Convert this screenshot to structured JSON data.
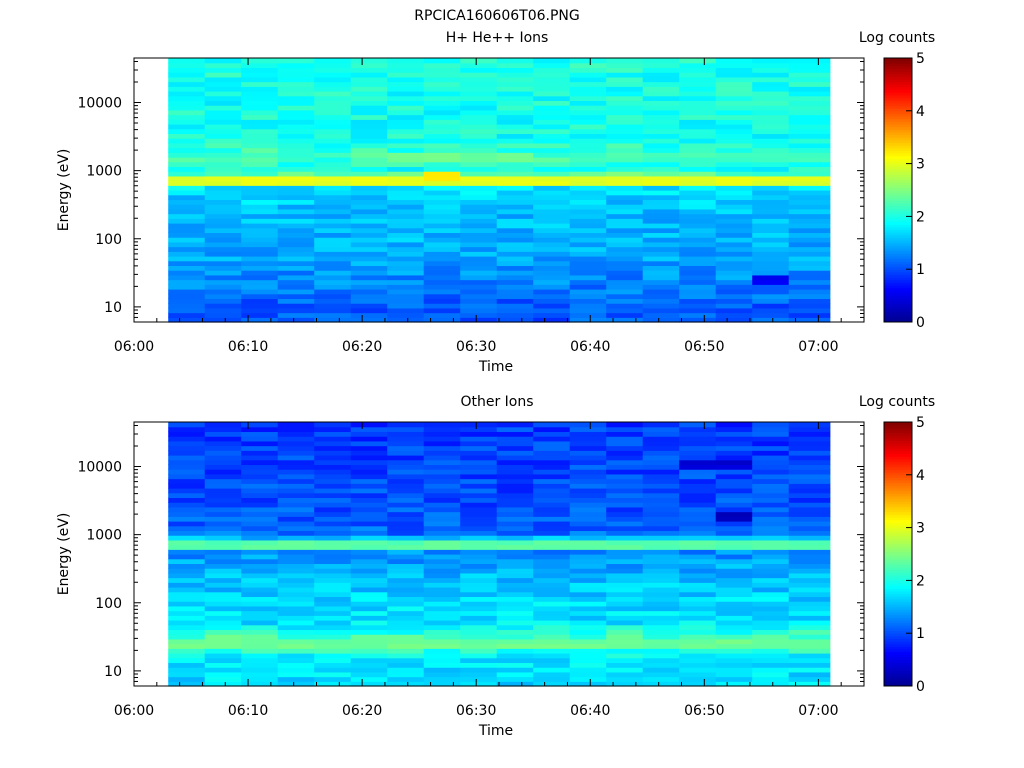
{
  "figure_title": "RPCICA160606T06.PNG",
  "colors": {
    "colormap": [
      "#00008f",
      "#0000ff",
      "#0080ff",
      "#00ffff",
      "#80ff80",
      "#ffff00",
      "#ff8000",
      "#ff0000",
      "#800000"
    ],
    "background": "#ffffff",
    "axis": "#000000"
  },
  "chart_data": [
    {
      "type": "heatmap",
      "title": "H+ He++ Ions",
      "xlabel": "Time",
      "ylabel": "Energy (eV)",
      "x_ticks": [
        "06:00",
        "06:10",
        "06:20",
        "06:30",
        "06:40",
        "06:50",
        "07:00"
      ],
      "xlim_minutes": [
        0,
        64
      ],
      "data_x_range_minutes": [
        3,
        61
      ],
      "y_scale": "log",
      "ylim": [
        6,
        45000
      ],
      "y_ticks": [
        "10",
        "100",
        "1000",
        "10000"
      ],
      "colorbar": {
        "label": "Log counts",
        "range": [
          0,
          5
        ],
        "ticks": [
          "0",
          "1",
          "2",
          "3",
          "4",
          "5"
        ]
      },
      "time_blocks_minutes": [
        3,
        6.2,
        9.4,
        12.6,
        15.8,
        19,
        22.2,
        25.4,
        28.6,
        31.8,
        35,
        38.2,
        41.4,
        44.6,
        47.8,
        51,
        54.2,
        57.4,
        61
      ],
      "energy_profile": [
        {
          "energy_ev": 8,
          "log_counts": 1.05
        },
        {
          "energy_ev": 12,
          "log_counts": 1.1
        },
        {
          "energy_ev": 20,
          "log_counts": 1.25
        },
        {
          "energy_ev": 35,
          "log_counts": 1.35
        },
        {
          "energy_ev": 60,
          "log_counts": 1.45
        },
        {
          "energy_ev": 100,
          "log_counts": 1.5
        },
        {
          "energy_ev": 200,
          "log_counts": 1.55
        },
        {
          "energy_ev": 400,
          "log_counts": 1.65
        },
        {
          "energy_ev": 600,
          "log_counts": 1.75
        },
        {
          "energy_ev": 770,
          "log_counts": 2.95
        },
        {
          "energy_ev": 1000,
          "log_counts": 1.9
        },
        {
          "energy_ev": 1600,
          "log_counts": 2.2
        },
        {
          "energy_ev": 3000,
          "log_counts": 1.95
        },
        {
          "energy_ev": 10000,
          "log_counts": 1.95
        },
        {
          "energy_ev": 40000,
          "log_counts": 2.0
        }
      ],
      "notable_features": [
        {
          "energy_ev": 770,
          "time_range_minutes": [
            3,
            61
          ],
          "log_counts": 3.0
        },
        {
          "energy_ev": 1600,
          "time_range_minutes": [
            22.2,
            35
          ],
          "log_counts": 2.4
        },
        {
          "energy_ev": 1600,
          "time_range_minutes": [
            38.2,
            61
          ],
          "log_counts": 2.2
        },
        {
          "energy_ev": 800,
          "time_range_minutes": [
            25.4,
            28.6
          ],
          "log_counts": 3.2
        },
        {
          "energy_ev": 25,
          "time_range_minutes": [
            54.2,
            57.4
          ],
          "log_counts": 0.6
        }
      ]
    },
    {
      "type": "heatmap",
      "title": "Other Ions",
      "xlabel": "Time",
      "ylabel": "Energy (eV)",
      "x_ticks": [
        "06:00",
        "06:10",
        "06:20",
        "06:30",
        "06:40",
        "06:50",
        "07:00"
      ],
      "xlim_minutes": [
        0,
        64
      ],
      "data_x_range_minutes": [
        3,
        61
      ],
      "y_scale": "log",
      "ylim": [
        6,
        45000
      ],
      "y_ticks": [
        "10",
        "100",
        "1000",
        "10000"
      ],
      "colorbar": {
        "label": "Log counts",
        "range": [
          0,
          5
        ],
        "ticks": [
          "0",
          "1",
          "2",
          "3",
          "4",
          "5"
        ]
      },
      "time_blocks_minutes": [
        3,
        6.2,
        9.4,
        12.6,
        15.8,
        19,
        22.2,
        25.4,
        28.6,
        31.8,
        35,
        38.2,
        41.4,
        44.6,
        47.8,
        51,
        54.2,
        57.4,
        61
      ],
      "energy_profile": [
        {
          "energy_ev": 8,
          "log_counts": 1.7
        },
        {
          "energy_ev": 15,
          "log_counts": 1.75
        },
        {
          "energy_ev": 27,
          "log_counts": 2.4
        },
        {
          "energy_ev": 50,
          "log_counts": 1.75
        },
        {
          "energy_ev": 100,
          "log_counts": 1.7
        },
        {
          "energy_ev": 300,
          "log_counts": 1.5
        },
        {
          "energy_ev": 600,
          "log_counts": 1.3
        },
        {
          "energy_ev": 760,
          "log_counts": 2.3
        },
        {
          "energy_ev": 1000,
          "log_counts": 1.15
        },
        {
          "energy_ev": 3000,
          "log_counts": 1.0
        },
        {
          "energy_ev": 10000,
          "log_counts": 0.95
        },
        {
          "energy_ev": 40000,
          "log_counts": 0.9
        }
      ],
      "notable_features": [
        {
          "energy_ev": 760,
          "time_range_minutes": [
            3,
            61
          ],
          "log_counts": 2.3
        },
        {
          "energy_ev": 27,
          "time_range_minutes": [
            3,
            61
          ],
          "log_counts": 2.4
        },
        {
          "energy_ev": 2000,
          "time_range_minutes": [
            51,
            54.2
          ],
          "log_counts": 0.2
        },
        {
          "energy_ev": 10000,
          "time_range_minutes": [
            47.8,
            54.2
          ],
          "log_counts": 0.4
        }
      ]
    }
  ]
}
